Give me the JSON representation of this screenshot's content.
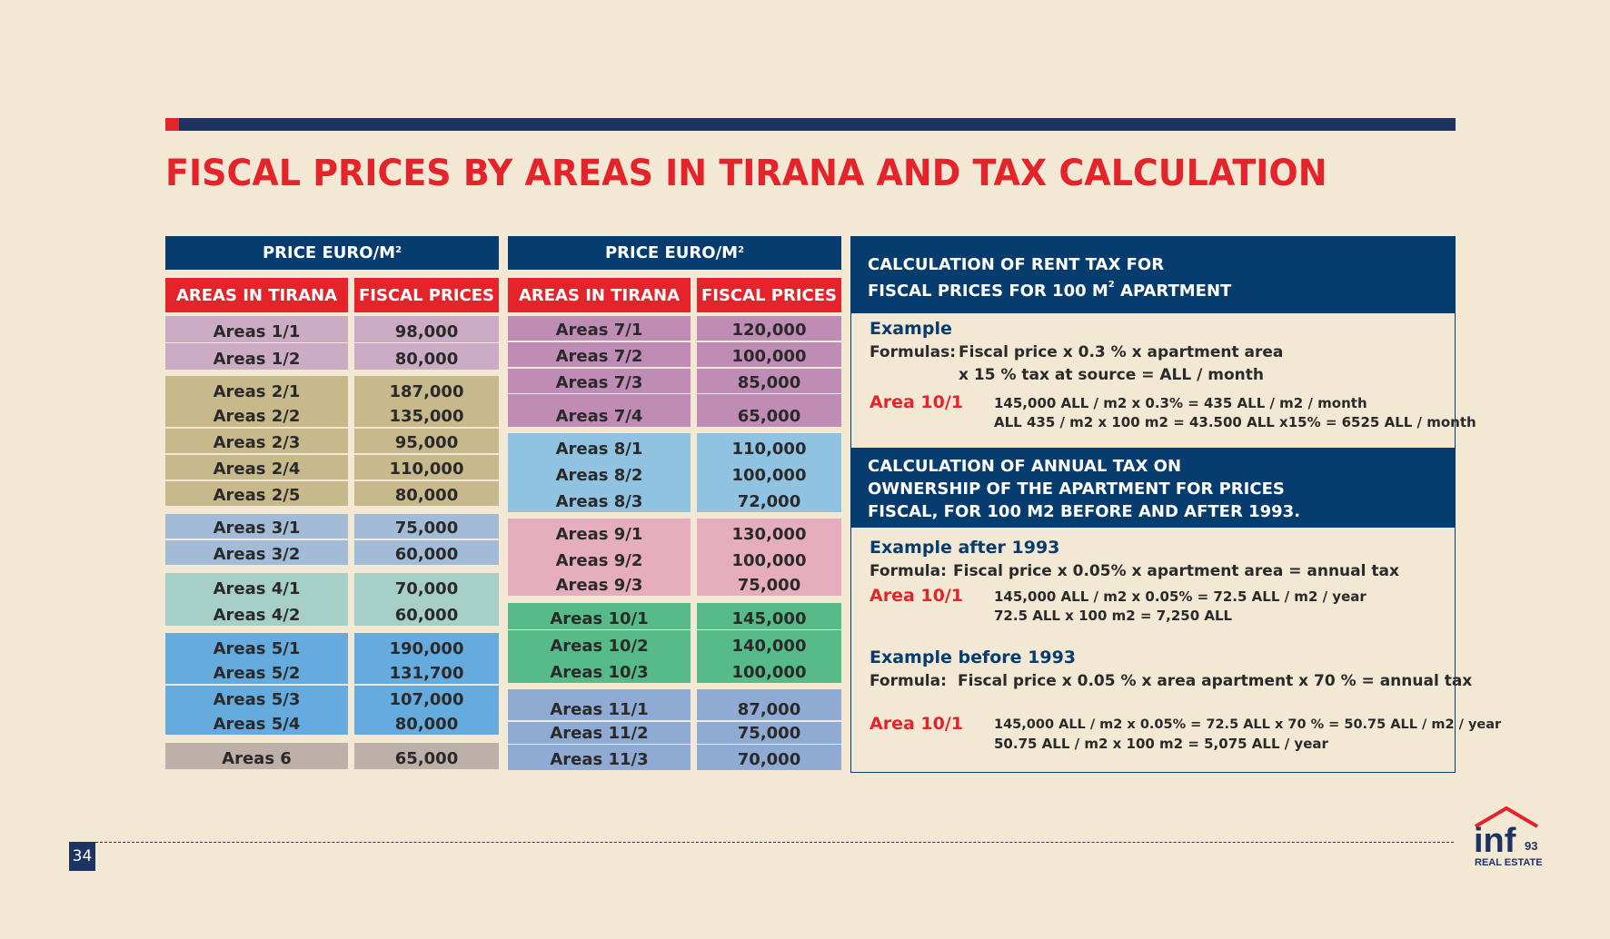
{
  "title": "FISCAL PRICES BY AREAS IN TIRANA AND TAX CALCULATION",
  "page_number": "34",
  "colors": {
    "accent_red": "#e5232b",
    "navy": "#073c6e",
    "background": "#f2e8d4"
  },
  "price_header": {
    "label": "PRICE EURO/M",
    "sup": "2"
  },
  "col_headers": {
    "areas": "AREAS IN TIRANA",
    "prices": "FISCAL PRICES"
  },
  "table1": [
    {
      "area": "Areas 1/1",
      "price": "98,000",
      "color": "lilac"
    },
    {
      "area": "Areas 1/2",
      "price": "80,000",
      "color": "lilac"
    },
    {
      "area": "Areas 2/1",
      "price": "187,000",
      "color": "khaki"
    },
    {
      "area": "Areas 2/2",
      "price": "135,000",
      "color": "khaki"
    },
    {
      "area": "Areas 2/3",
      "price": "95,000",
      "color": "khaki"
    },
    {
      "area": "Areas 2/4",
      "price": "110,000",
      "color": "khaki"
    },
    {
      "area": "Areas 2/5",
      "price": "80,000",
      "color": "khaki"
    },
    {
      "area": "Areas 3/1",
      "price": "75,000",
      "color": "steel"
    },
    {
      "area": "Areas 3/2",
      "price": "60,000",
      "color": "steel"
    },
    {
      "area": "Areas 4/1",
      "price": "70,000",
      "color": "mint"
    },
    {
      "area": "Areas 4/2",
      "price": "60,000",
      "color": "mint"
    },
    {
      "area": "Areas 5/1",
      "price": "190,000",
      "color": "blue"
    },
    {
      "area": "Areas 5/2",
      "price": "131,700",
      "color": "blue"
    },
    {
      "area": "Areas 5/3",
      "price": "107,000",
      "color": "blue"
    },
    {
      "area": "Areas 5/4",
      "price": "80,000",
      "color": "blue"
    },
    {
      "area": "Areas 6",
      "price": "65,000",
      "color": "taupe"
    }
  ],
  "table2": [
    {
      "area": "Areas 7/1",
      "price": "120,000",
      "color": "mauve"
    },
    {
      "area": "Areas 7/2",
      "price": "100,000",
      "color": "mauve"
    },
    {
      "area": "Areas 7/3",
      "price": "85,000",
      "color": "mauve"
    },
    {
      "area": "Areas 7/4",
      "price": "65,000",
      "color": "mauve"
    },
    {
      "area": "Areas 8/1",
      "price": "110,000",
      "color": "sky"
    },
    {
      "area": "Areas 8/2",
      "price": "100,000",
      "color": "sky"
    },
    {
      "area": "Areas 8/3",
      "price": "72,000",
      "color": "sky"
    },
    {
      "area": "Areas 9/1",
      "price": "130,000",
      "color": "pink"
    },
    {
      "area": "Areas 9/2",
      "price": "100,000",
      "color": "pink"
    },
    {
      "area": "Areas 9/3",
      "price": "75,000",
      "color": "pink"
    },
    {
      "area": "Areas 10/1",
      "price": "145,000",
      "color": "green"
    },
    {
      "area": "Areas 10/2",
      "price": "140,000",
      "color": "green"
    },
    {
      "area": "Areas 10/3",
      "price": "100,000",
      "color": "green"
    },
    {
      "area": "Areas 11/1",
      "price": "87,000",
      "color": "periwinkle"
    },
    {
      "area": "Areas 11/2",
      "price": "75,000",
      "color": "periwinkle"
    },
    {
      "area": "Areas 11/3",
      "price": "70,000",
      "color": "periwinkle"
    }
  ],
  "rent": {
    "heading_line1": "CALCULATION OF RENT TAX FOR",
    "heading_line2_pre": "FISCAL PRICES FOR 100 M",
    "heading_line2_sup": "2",
    "heading_line2_post": " APARTMENT",
    "example_title": "Example",
    "formulas_label": "Formulas:",
    "formula_line1": "Fiscal price x 0.3 % x apartment area",
    "formula_line2": "x 15 % tax at source = ALL / month",
    "area_label": "Area 10/1",
    "calc_line1": "145,000 ALL / m2 x 0.3% = 435 ALL / m2 / month",
    "calc_line2": "ALL 435 / m2 x 100 m2 = 43.500 ALL x15% = 6525 ALL / month"
  },
  "annual": {
    "heading_line1": "CALCULATION OF ANNUAL TAX ON",
    "heading_line2": "OWNERSHIP OF THE APARTMENT FOR PRICES",
    "heading_line3": "FISCAL, FOR 100 M2 BEFORE AND AFTER 1993.",
    "after_title": "Example after 1993",
    "after_formula_label": "Formula:",
    "after_formula": "Fiscal price x 0.05% x apartment area = annual tax",
    "after_area_label": "Area 10/1",
    "after_calc1": "145,000 ALL / m2 x 0.05% = 72.5 ALL / m2 / year",
    "after_calc2": "72.5 ALL x 100 m2 = 7,250 ALL",
    "before_title": "Example before 1993",
    "before_formula_label": "Formula:",
    "before_formula": "Fiscal price x 0.05 % x area apartment x 70 % = annual tax",
    "before_area_label": "Area 10/1",
    "before_calc1": "145,000 ALL / m2 x 0.05% = 72.5 ALL x 70 % = 50.75 ALL / m2 / year",
    "before_calc2": "50.75 ALL / m2 x 100 m2 = 5,075 ALL / year"
  },
  "logo": {
    "brand": "inf",
    "number": "93",
    "tagline": "REAL ESTATE"
  }
}
